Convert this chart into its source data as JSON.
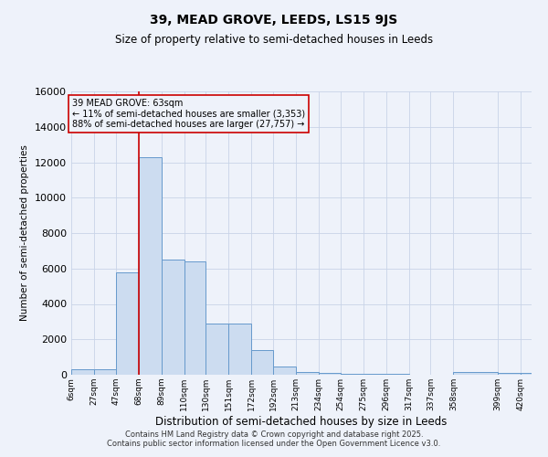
{
  "title": "39, MEAD GROVE, LEEDS, LS15 9JS",
  "subtitle": "Size of property relative to semi-detached houses in Leeds",
  "xlabel": "Distribution of semi-detached houses by size in Leeds",
  "ylabel": "Number of semi-detached properties",
  "annotation_line1": "39 MEAD GROVE: 63sqm",
  "annotation_line2": "← 11% of semi-detached houses are smaller (3,353)",
  "annotation_line3": "88% of semi-detached houses are larger (27,757) →",
  "footer_line1": "Contains HM Land Registry data © Crown copyright and database right 2025.",
  "footer_line2": "Contains public sector information licensed under the Open Government Licence v3.0.",
  "red_line_x": 68,
  "bins": [
    6,
    27,
    47,
    68,
    89,
    110,
    130,
    151,
    172,
    192,
    213,
    234,
    254,
    275,
    296,
    317,
    337,
    358,
    399,
    420
  ],
  "bin_labels": [
    "6sqm",
    "27sqm",
    "47sqm",
    "68sqm",
    "89sqm",
    "110sqm",
    "130sqm",
    "151sqm",
    "172sqm",
    "192sqm",
    "213sqm",
    "234sqm",
    "254sqm",
    "275sqm",
    "296sqm",
    "317sqm",
    "337sqm",
    "358sqm",
    "399sqm",
    "420sqm"
  ],
  "values": [
    300,
    300,
    5800,
    12300,
    6500,
    6400,
    2900,
    2900,
    1400,
    450,
    150,
    100,
    75,
    50,
    30,
    20,
    10,
    150,
    100,
    100
  ],
  "bar_color": "#ccdcf0",
  "bar_edge_color": "#6699cc",
  "red_line_color": "#cc0000",
  "grid_color": "#c8d4e8",
  "background_color": "#eef2fa",
  "ylim": [
    0,
    16000
  ],
  "yticks": [
    0,
    2000,
    4000,
    6000,
    8000,
    10000,
    12000,
    14000,
    16000
  ],
  "title_fontsize": 10,
  "subtitle_fontsize": 8.5
}
